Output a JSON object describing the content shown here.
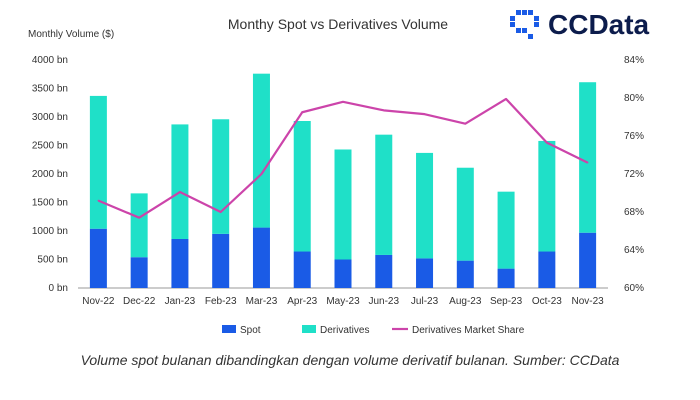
{
  "brand": {
    "name": "CCData"
  },
  "caption": "Volume spot bulanan dibandingkan dengan volume derivatif bulanan. Sumber: CCData",
  "colors": {
    "spot": "#1a5be6",
    "derivatives": "#1fe0c8",
    "share": "#cc44aa"
  },
  "chart_data": {
    "type": "bar",
    "title": "Monthy Spot vs Derivatives Volume",
    "ylabel": "Monthly Volume ($)",
    "categories": [
      "Nov-22",
      "Dec-22",
      "Jan-23",
      "Feb-23",
      "Mar-23",
      "Apr-23",
      "May-23",
      "Jun-23",
      "Jul-23",
      "Aug-23",
      "Sep-23",
      "Oct-23",
      "Nov-23"
    ],
    "series": [
      {
        "name": "Spot",
        "kind": "stacked-bar",
        "values": [
          1040,
          540,
          860,
          950,
          1060,
          640,
          500,
          580,
          520,
          480,
          340,
          640,
          970
        ]
      },
      {
        "name": "Derivatives",
        "kind": "stacked-bar",
        "values": [
          2330,
          1120,
          2010,
          2010,
          2700,
          2290,
          1930,
          2110,
          1850,
          1630,
          1350,
          1940,
          2640
        ]
      },
      {
        "name": "Derivatives Market Share",
        "kind": "line",
        "axis": "right",
        "values": [
          69.2,
          67.4,
          70.1,
          68.0,
          72.0,
          78.5,
          79.6,
          78.7,
          78.3,
          77.3,
          79.9,
          75.3,
          73.2
        ]
      }
    ],
    "ylim": [
      0,
      4000
    ],
    "y_ticks": [
      "0 bn",
      "500 bn",
      "1000 bn",
      "1500 bn",
      "2000 bn",
      "2500 bn",
      "3000 bn",
      "3500 bn",
      "4000 bn"
    ],
    "y2lim": [
      60,
      84
    ],
    "y2_ticks": [
      "60%",
      "64%",
      "68%",
      "72%",
      "76%",
      "80%",
      "84%"
    ],
    "legend_position": "bottom",
    "grid": false
  }
}
